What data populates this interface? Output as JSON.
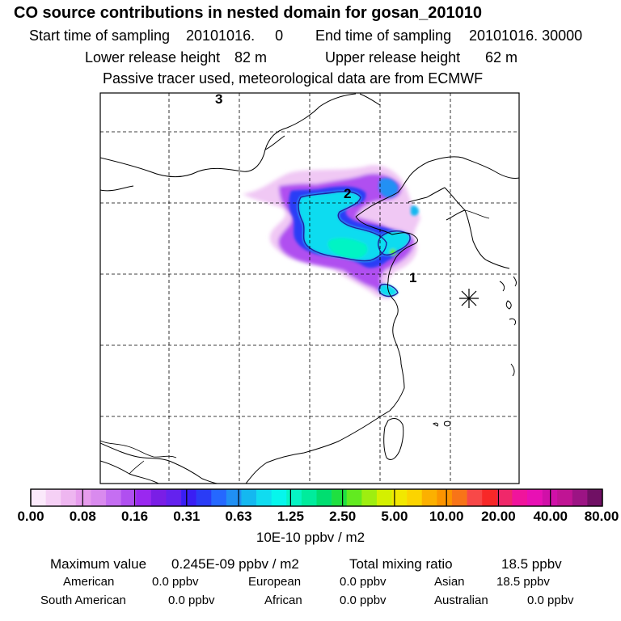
{
  "header": {
    "title": "CO  source contributions in nested domain for gosan_201010",
    "start_label": "Start time of sampling",
    "start_value": "20101016.     0",
    "end_label": "End time of sampling",
    "end_value": "20101016. 30000",
    "lower_label": "Lower release height",
    "lower_value": "82 m",
    "upper_label": "Upper release height",
    "upper_value": "62 m",
    "note": "Passive tracer used, meteorological data are from ECMWF"
  },
  "map": {
    "labels": {
      "marker_1": "1",
      "marker_2": "2",
      "marker_3": "3"
    },
    "colors": {
      "frame": "#000000",
      "grid": "#000000",
      "coast": "#000000",
      "site_marker": "#000000"
    }
  },
  "colorbar": {
    "segments": [
      "#fbe9fb",
      "#f5d0f5",
      "#eeb6f0",
      "#e79ced",
      "#d98aee",
      "#c56ef2",
      "#b04ff0",
      "#9a28f0",
      "#7a1ee6",
      "#6422ee",
      "#3a1ef4",
      "#2a3cf6",
      "#2568ff",
      "#2090f4",
      "#14b8f0",
      "#10dcf0",
      "#06f6ec",
      "#06f4c4",
      "#00ec9c",
      "#00de70",
      "#1fe040",
      "#62ea20",
      "#9eee10",
      "#d4f000",
      "#f2e800",
      "#fcd400",
      "#fcb000",
      "#fc9400",
      "#f87418",
      "#f84848",
      "#f82828",
      "#f0286a",
      "#f0149c",
      "#e810b4",
      "#d010a8",
      "#c01494",
      "#9c1484",
      "#701064"
    ],
    "tick_labels": [
      "0.00",
      "0.08",
      "0.16",
      "0.31",
      "0.63",
      "1.25",
      "2.50",
      "5.00",
      "10.00",
      "20.00",
      "40.00",
      "80.00"
    ],
    "unit": "10E-10 ppbv / m2"
  },
  "summary": {
    "max_label": "Maximum value",
    "max_value": "0.245E-09 ppbv / m2",
    "total_label": "Total mixing ratio",
    "total_value": "18.5 ppbv"
  },
  "regions": [
    {
      "name": "American",
      "value": "0.0 ppbv"
    },
    {
      "name": "European",
      "value": "0.0 ppbv"
    },
    {
      "name": "Asian",
      "value": "18.5 ppbv"
    },
    {
      "name": "South American",
      "value": "0.0 ppbv"
    },
    {
      "name": "African",
      "value": "0.0 ppbv"
    },
    {
      "name": "Australian",
      "value": "0.0 ppbv"
    }
  ]
}
